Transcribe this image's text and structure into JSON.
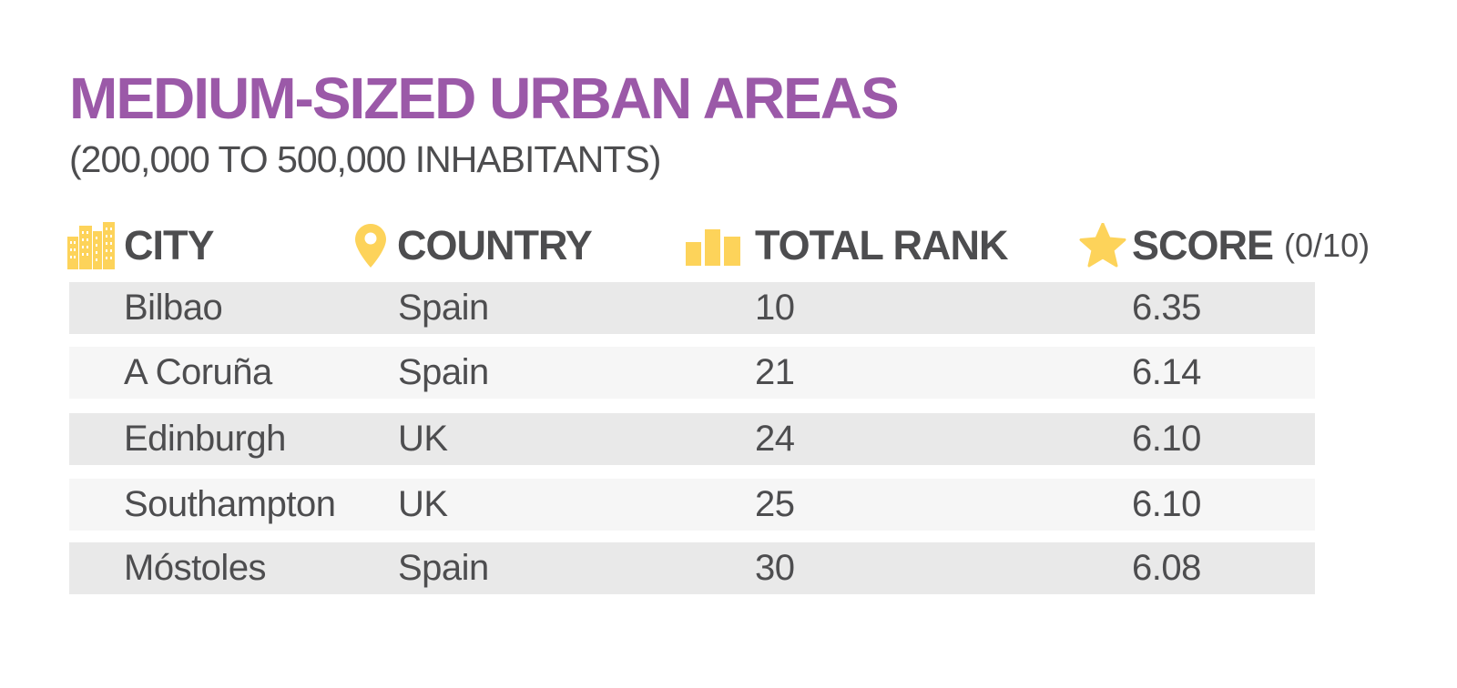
{
  "title": "MEDIUM-SIZED URBAN AREAS",
  "subtitle": "(200,000 TO 500,000 INHABITANTS)",
  "colors": {
    "title": "#9b59a8",
    "text": "#4d4d4f",
    "icon": "#fdd35a",
    "row_dark": "#e9e9e9",
    "row_light": "#f6f6f6"
  },
  "headers": {
    "city": {
      "label": "CITY",
      "icon": "buildings-icon"
    },
    "country": {
      "label": "COUNTRY",
      "icon": "map-pin-icon"
    },
    "rank": {
      "label": "TOTAL RANK",
      "icon": "bar-chart-icon"
    },
    "score": {
      "label": "SCORE",
      "note": "(0/10)",
      "icon": "star-icon"
    }
  },
  "rows": [
    {
      "city": "Bilbao",
      "country": "Spain",
      "rank": "10",
      "score": "6.35"
    },
    {
      "city": "A Coruña",
      "country": "Spain",
      "rank": "21",
      "score": "6.14"
    },
    {
      "city": "Edinburgh",
      "country": "UK",
      "rank": "24",
      "score": "6.10"
    },
    {
      "city": "Southampton",
      "country": "UK",
      "rank": "25",
      "score": "6.10"
    },
    {
      "city": "Móstoles",
      "country": "Spain",
      "rank": "30",
      "score": "6.08"
    }
  ]
}
